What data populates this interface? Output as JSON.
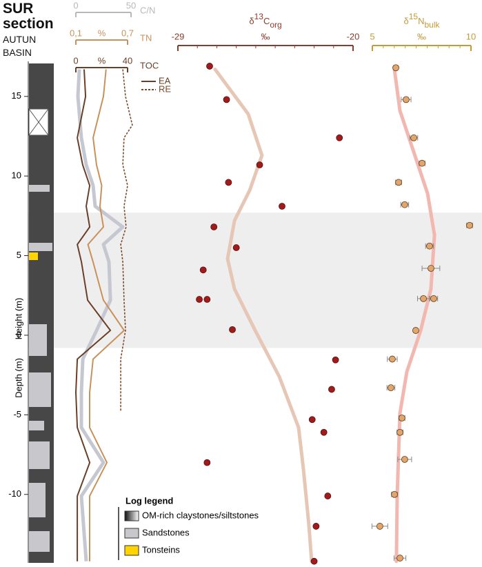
{
  "chart_data": [
    {
      "type": "log",
      "title": "SUR section",
      "subtitle": "AUTUN BASIN",
      "ylabel": "Height (m)",
      "ylabel2": "Depth (m)",
      "ylim": [
        -14.3,
        17.2
      ],
      "yticks": [
        -10,
        -5,
        0,
        5,
        10,
        15
      ],
      "band": [
        -0.8,
        7.7
      ],
      "legend": {
        "title": "Log legend",
        "entries": [
          {
            "name": "OM-rich claystones/siltstones",
            "color": "#3a3a3a"
          },
          {
            "name": "Sandstones",
            "color": "#c8c8cc"
          },
          {
            "name": "Tonsteins",
            "color": "#ffd400"
          }
        ]
      }
    },
    {
      "type": "profile",
      "ylim": [
        -14.3,
        17.2
      ],
      "axes": [
        {
          "label": "C/N",
          "color": "#b8b8b8",
          "xlim": [
            0,
            50
          ],
          "xticks": [
            0,
            50
          ],
          "series": [
            {
              "color": "#c5c8d0",
              "x": [
                3.1,
                1.9,
                5,
                9.4,
                15.6,
                17.5,
                42.5,
                25,
                30,
                31.3,
                18.8,
                6.3,
                5,
                5,
                25,
                5,
                9.4
              ],
              "y": [
                16.7,
                15.0,
                12.4,
                10.7,
                9.4,
                8.1,
                6.8,
                5.7,
                4.6,
                2.2,
                0.3,
                -1.5,
                -3.6,
                -5.8,
                -8.0,
                -10.1,
                -14.2
              ]
            }
          ]
        },
        {
          "label": "TN",
          "unit": "%",
          "color": "#c8915a",
          "xlim": [
            0.1,
            0.7
          ],
          "xticks": [
            {
              "value": 0.1,
              "label": "0,1"
            },
            {
              "value": 0.7,
              "label": "0,7"
            }
          ],
          "series": [
            {
              "color": "#c8915a",
              "x": [
                0.45,
                0.42,
                0.3,
                0.34,
                0.4,
                0.38,
                0.42,
                0.24,
                0.3,
                0.42,
                0.66,
                0.3,
                0.26,
                0.26,
                0.46,
                0.26,
                0.26
              ],
              "y": [
                16.7,
                15.0,
                12.4,
                10.7,
                9.4,
                8.1,
                6.8,
                5.7,
                4.6,
                2.2,
                0.3,
                -1.5,
                -3.6,
                -5.8,
                -8.0,
                -10.1,
                -14.2
              ]
            }
          ]
        },
        {
          "label": "TOC",
          "unit": "%",
          "color": "#6b3e26",
          "xlim": [
            0,
            40
          ],
          "xticks": [
            0,
            40
          ],
          "series": [
            {
              "name": "EA",
              "color": "#6b3e26",
              "dash": false,
              "x": [
                6.4,
                7.5,
                1.1,
                5.3,
                10.7,
                8.0,
                10.7,
                1.1,
                4.3,
                9.1,
                26.7,
                1.1,
                0,
                1.1,
                10.7,
                1.1,
                1.1
              ],
              "y": [
                16.7,
                15.0,
                12.4,
                10.7,
                9.4,
                8.1,
                6.8,
                5.7,
                4.6,
                2.2,
                0.3,
                -1.5,
                -3.6,
                -5.8,
                -8.0,
                -10.1,
                -14.2
              ]
            },
            {
              "name": "RE",
              "color": "#7a4a2a",
              "dash": true,
              "x": [
                36.3,
                38.4,
                43.7,
                37.3,
                36.3,
                40,
                37.3,
                38.9,
                34.7,
                36.3,
                37.3,
                38.4,
                34.7,
                34.7,
                34.7
              ],
              "y": [
                16.7,
                15.0,
                13.2,
                12.4,
                10.7,
                9.4,
                8.1,
                6.8,
                5.7,
                4.6,
                2.2,
                0.3,
                -1.5,
                -3.6,
                -4.8
              ]
            }
          ]
        }
      ]
    },
    {
      "type": "scatter",
      "title": {
        "symbol": "δ",
        "sup": "13",
        "main": "C",
        "sub": "org"
      },
      "unit": "‰",
      "color": "#8b3a2b",
      "point_color": "#a01c1c",
      "xlim": [
        -29,
        -20
      ],
      "xticks": [
        -29,
        -20
      ],
      "ylim": [
        -14.3,
        17.2
      ],
      "points": {
        "x": [
          -27.37,
          -26.5,
          -20.7,
          -24.8,
          -26.4,
          -23.65,
          -27.15,
          -26.0,
          -27.7,
          -27.9,
          -27.5,
          -26.2,
          -20.9,
          -21.1,
          -22.1,
          -21.5,
          -27.5,
          -21.3,
          -21.9,
          -22.0
        ],
        "y": [
          16.9,
          14.8,
          12.4,
          10.7,
          9.6,
          8.1,
          6.8,
          5.5,
          4.1,
          2.25,
          2.25,
          0.35,
          -1.55,
          -3.4,
          -5.3,
          -6.1,
          -8.0,
          -10.1,
          -12.0,
          -14.2
        ]
      },
      "trend": {
        "color": "#e6c7b6",
        "x": [
          -27.09,
          -25.39,
          -24.68,
          -25.31,
          -26.09,
          -26.45,
          -26.09,
          -25.03,
          -23.79,
          -22.8,
          -22.55,
          -22.27,
          -22.13
        ],
        "y": [
          16.7,
          13.9,
          11.3,
          9.1,
          7.2,
          4.8,
          2.9,
          0.3,
          -2.6,
          -5.8,
          -8.4,
          -11.9,
          -14.2
        ]
      }
    },
    {
      "type": "scatter",
      "title": {
        "symbol": "δ",
        "sup": "15",
        "main": "N",
        "sub": "bulk"
      },
      "unit": "‰",
      "color": "#c49a3a",
      "point_color": "#e2a56c",
      "xlim": [
        5,
        10
      ],
      "xticks": [
        5,
        10
      ],
      "ylim": [
        -14.3,
        17.2
      ],
      "points": {
        "x": [
          6.19,
          6.71,
          7.1,
          7.52,
          6.33,
          6.64,
          9.93,
          7.9,
          7.97,
          7.59,
          8.11,
          7.2,
          6.01,
          5.94,
          6.5,
          6.4,
          6.64,
          6.12,
          5.38,
          6.4
        ],
        "y": [
          16.8,
          14.8,
          12.4,
          10.8,
          9.6,
          8.2,
          6.9,
          5.6,
          4.2,
          2.3,
          2.3,
          0.3,
          -1.5,
          -3.3,
          -5.2,
          -6.1,
          -7.8,
          -10.0,
          -12.0,
          -14.0
        ],
        "errors": [
          0.1,
          0.25,
          0.2,
          0.15,
          0.15,
          0.2,
          0.15,
          0.2,
          0.45,
          0.3,
          0.2,
          0.1,
          0.25,
          0.2,
          0.15,
          0.15,
          0.35,
          0.15,
          0.4,
          0.3
        ]
      },
      "trend": {
        "color": "#f2b8b0",
        "x": [
          6.12,
          6.4,
          7.1,
          7.8,
          8.15,
          7.97,
          7.45,
          6.75,
          6.4,
          6.33,
          6.26,
          6.22
        ],
        "y": [
          16.7,
          14.1,
          11.5,
          8.9,
          6.3,
          2.9,
          0.3,
          -2.3,
          -4.9,
          -7.5,
          -10.1,
          -14.2
        ]
      }
    }
  ]
}
